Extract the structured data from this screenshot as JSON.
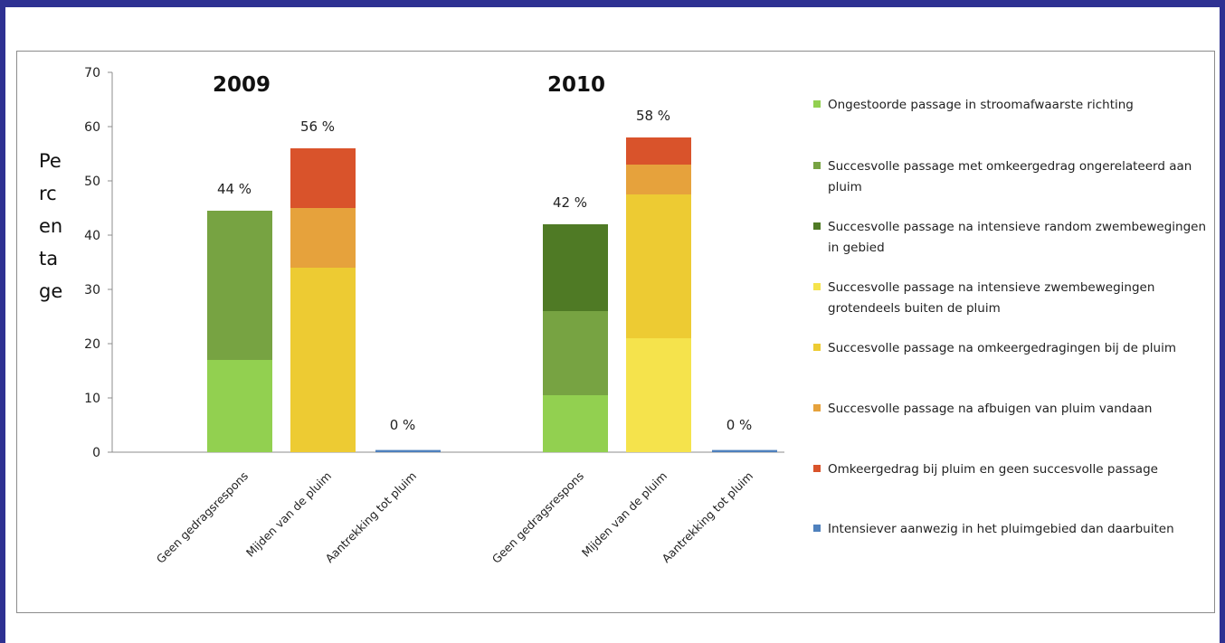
{
  "chart_data": [
    {
      "type": "bar",
      "stacked": true,
      "title": "2009",
      "ylabel": "Percentage",
      "ylim": [
        0,
        70
      ],
      "yticks": [
        0,
        10,
        20,
        30,
        40,
        50,
        60,
        70
      ],
      "categories": [
        "Geen gedragsrespons",
        "Mijden van de pluim",
        "Aantrekking tot pluim"
      ],
      "totals_labels": [
        "44 %",
        "56 %",
        "0 %"
      ],
      "series": [
        {
          "name": "Ongestoorde passage in stroomafwaarste richting",
          "values": [
            17,
            0,
            0
          ]
        },
        {
          "name": "Succesvolle passage met  omkeergedrag ongerelateerd aan pluim",
          "values": [
            27.5,
            0,
            0
          ]
        },
        {
          "name": "Succesvolle passage na intensieve random zwembewegingen in gebied",
          "values": [
            0,
            0,
            0
          ]
        },
        {
          "name": "Succesvolle passage na intensieve zwembewegingen grotendeels buiten de pluim",
          "values": [
            0,
            0,
            0
          ]
        },
        {
          "name": "Succesvolle passage na omkeergedragingen bij de pluim",
          "values": [
            0,
            34,
            0
          ]
        },
        {
          "name": "Succesvolle passage na afbuigen van pluim vandaan",
          "values": [
            0,
            11,
            0
          ]
        },
        {
          "name": "Omkeergedrag bij pluim en geen succesvolle passage",
          "values": [
            0,
            11,
            0
          ]
        },
        {
          "name": "Intensiever aanwezig in het pluimgebied dan daarbuiten",
          "values": [
            0,
            0,
            0.4
          ]
        }
      ]
    },
    {
      "type": "bar",
      "stacked": true,
      "title": "2010",
      "ylim": [
        0,
        70
      ],
      "categories": [
        "Geen gedragsrespons",
        "Mijden van de pluim",
        "Aantrekking tot pluim"
      ],
      "totals_labels": [
        "42 %",
        "58 %",
        "0 %"
      ],
      "series": [
        {
          "name": "Ongestoorde passage in stroomafwaarste richting",
          "values": [
            10.5,
            0,
            0
          ]
        },
        {
          "name": "Succesvolle passage met  omkeergedrag ongerelateerd aan pluim",
          "values": [
            15.5,
            0,
            0
          ]
        },
        {
          "name": "Succesvolle passage na intensieve random zwembewegingen in gebied",
          "values": [
            16,
            0,
            0
          ]
        },
        {
          "name": "Succesvolle passage na intensieve zwembewegingen grotendeels buiten de pluim",
          "values": [
            0,
            21,
            0
          ]
        },
        {
          "name": "Succesvolle passage na omkeergedragingen bij de pluim",
          "values": [
            0,
            26.5,
            0
          ]
        },
        {
          "name": "Succesvolle passage na afbuigen van pluim vandaan",
          "values": [
            0,
            5.5,
            0
          ]
        },
        {
          "name": "Omkeergedrag bij pluim en geen succesvolle passage",
          "values": [
            0,
            5,
            0
          ]
        },
        {
          "name": "Intensiever aanwezig in het pluimgebied dan daarbuiten",
          "values": [
            0,
            0,
            0.4
          ]
        }
      ]
    }
  ],
  "ylabel_lines": [
    "Pe",
    "rc",
    "en",
    "ta",
    "ge"
  ],
  "legend": [
    {
      "label": "Ongestoorde passage in stroomafwaarste richting",
      "color": "#92d050"
    },
    {
      "label": "Succesvolle passage met  omkeergedrag ongerelateerd aan pluim",
      "color": "#77a342"
    },
    {
      "label": "Succesvolle passage na intensieve random zwembewegingen in gebied",
      "color": "#4f7a25"
    },
    {
      "label": "Succesvolle passage na intensieve zwembewegingen grotendeels buiten de pluim",
      "color": "#f5e34c"
    },
    {
      "label": "Succesvolle passage na omkeergedragingen bij de pluim",
      "color": "#edcb33"
    },
    {
      "label": "Succesvolle passage na afbuigen van pluim vandaan",
      "color": "#e6a23c"
    },
    {
      "label": "Omkeergedrag bij pluim en geen succesvolle passage",
      "color": "#d9532b"
    },
    {
      "label": "Intensiever aanwezig in het pluimgebied dan daarbuiten",
      "color": "#4f81bd"
    }
  ]
}
